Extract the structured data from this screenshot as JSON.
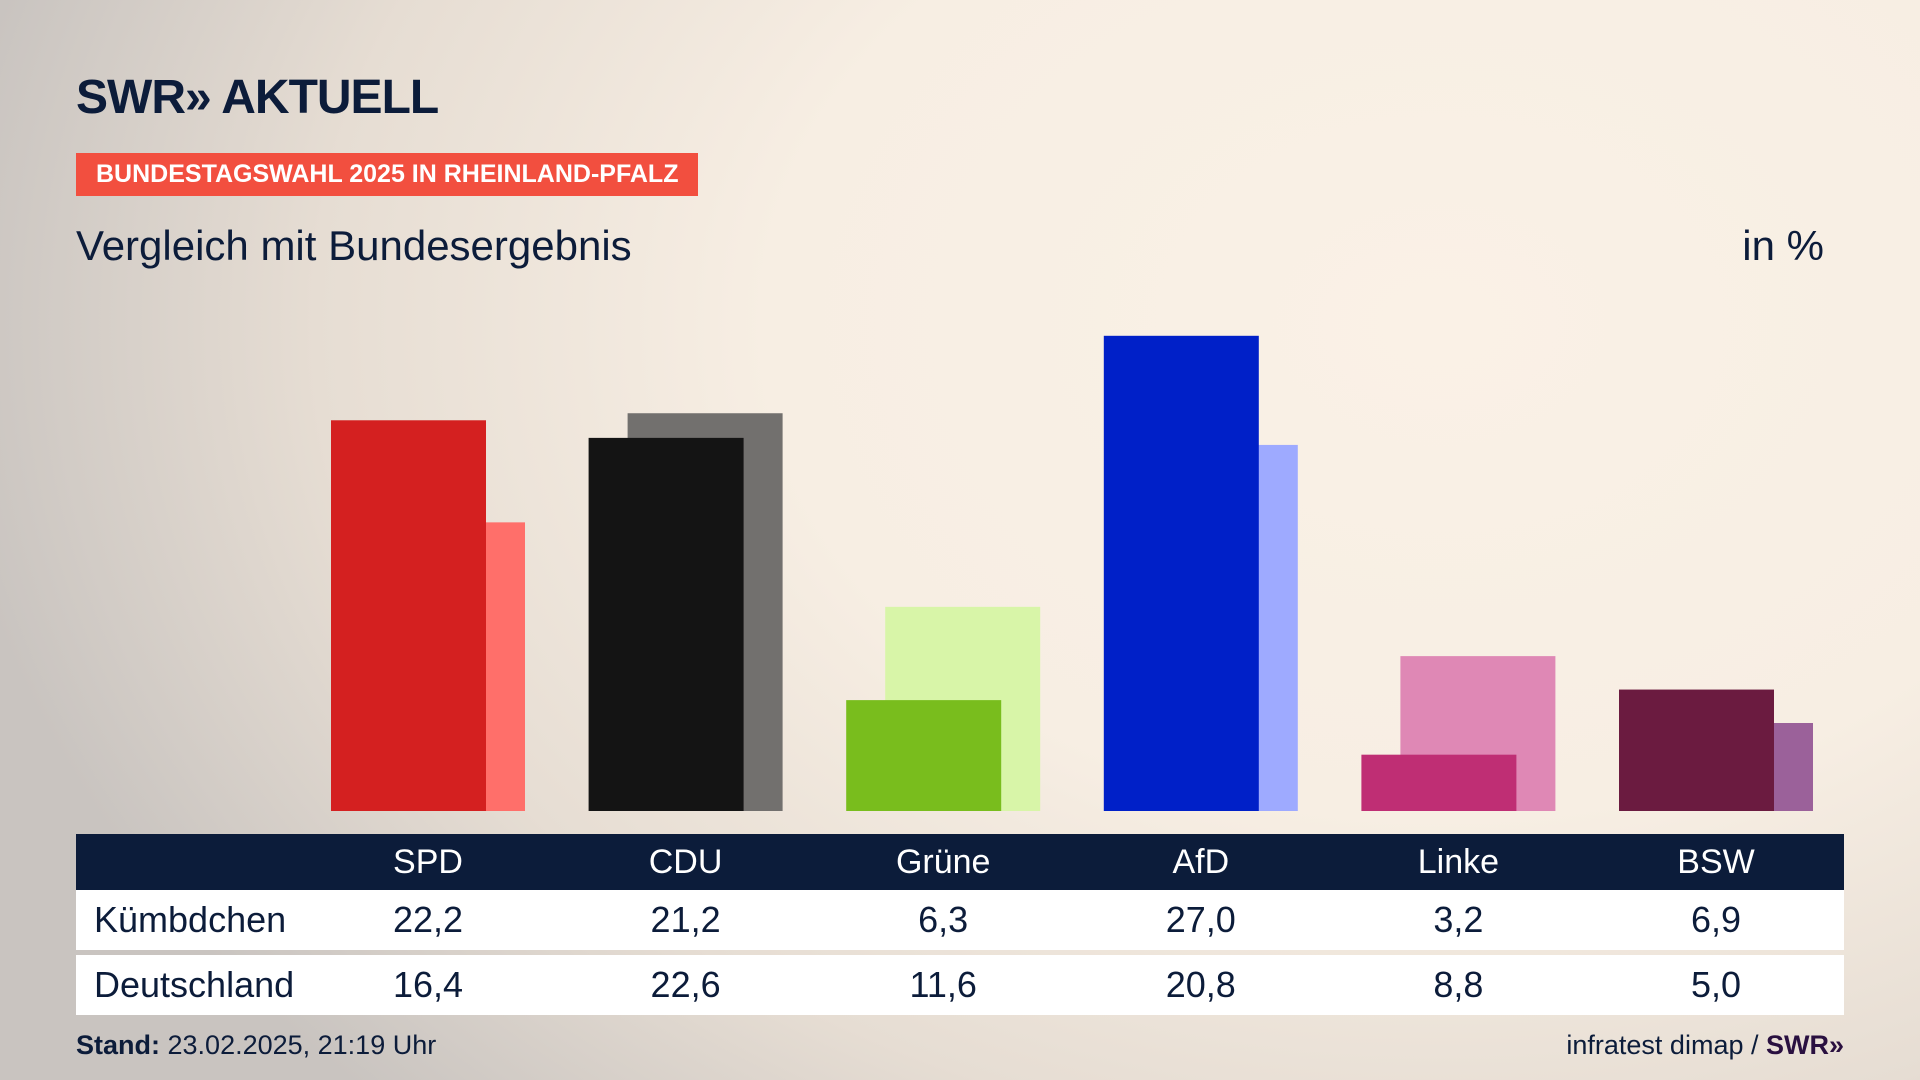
{
  "header": {
    "logo": "SWR» AKTUELL",
    "banner": "BUNDESTAGSWAHL 2025 IN RHEINLAND-PFALZ",
    "subtitle": "Vergleich mit Bundesergebnis",
    "unit": "in %"
  },
  "chart_data": {
    "type": "bar",
    "title": "Vergleich mit Bundesergebnis",
    "ylabel": "in %",
    "categories": [
      "SPD",
      "CDU",
      "Grüne",
      "AfD",
      "Linke",
      "BSW"
    ],
    "series": [
      {
        "name": "Kümbdchen",
        "values": [
          22.2,
          21.2,
          6.3,
          27.0,
          3.2,
          6.9
        ],
        "display": [
          "22,2",
          "21,2",
          "6,3",
          "27,0",
          "3,2",
          "6,9"
        ],
        "colors": [
          "#d42020",
          "#141414",
          "#79bd1d",
          "#0020c8",
          "#bf2e74",
          "#6b1b40"
        ]
      },
      {
        "name": "Deutschland",
        "values": [
          16.4,
          22.6,
          11.6,
          20.8,
          8.8,
          5.0
        ],
        "display": [
          "16,4",
          "22,6",
          "11,6",
          "20,8",
          "8,8",
          "5,0"
        ],
        "colors": [
          "#ff6f6a",
          "#72706e",
          "#d8f5a8",
          "#9eaaff",
          "#df88b5",
          "#9b619a"
        ]
      }
    ],
    "ylim": [
      0,
      27.5
    ]
  },
  "footer": {
    "stand_label": "Stand:",
    "stand_value": "23.02.2025, 21:19 Uhr",
    "source": "infratest dimap / ",
    "source_logo": "SWR»"
  }
}
